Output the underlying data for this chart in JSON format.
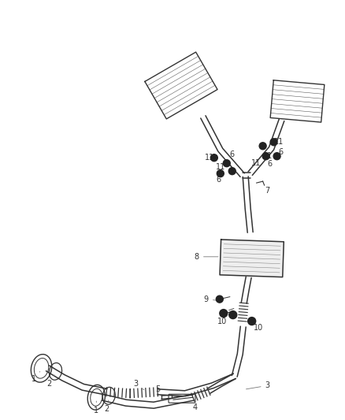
{
  "bg_color": "#ffffff",
  "line_color": "#333333",
  "label_color": "#333333",
  "figsize": [
    4.38,
    5.33
  ],
  "dpi": 100,
  "label_fs": 7.0,
  "lw_pipe": 1.1,
  "lw_thin": 0.7
}
